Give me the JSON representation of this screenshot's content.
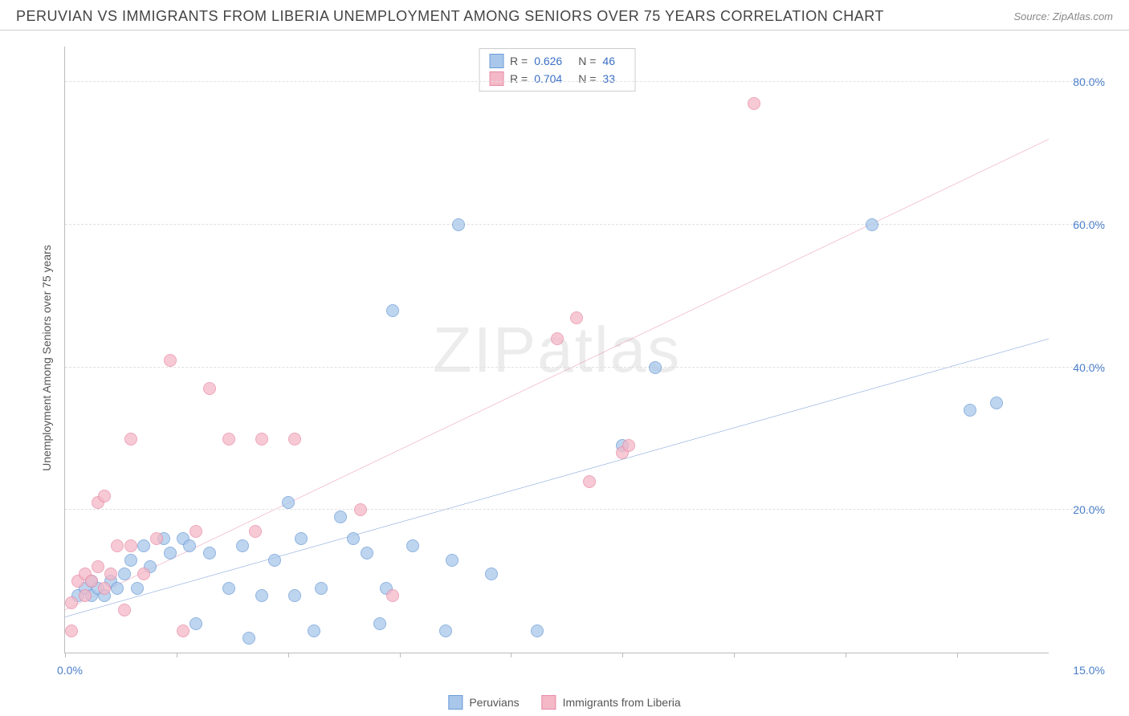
{
  "header": {
    "title": "PERUVIAN VS IMMIGRANTS FROM LIBERIA UNEMPLOYMENT AMONG SENIORS OVER 75 YEARS CORRELATION CHART",
    "source": "Source: ZipAtlas.com"
  },
  "chart": {
    "type": "scatter",
    "y_axis_label": "Unemployment Among Seniors over 75 years",
    "xlim": [
      0,
      15
    ],
    "ylim": [
      0,
      85
    ],
    "x_tick_label_left": "0.0%",
    "x_tick_label_right": "15.0%",
    "x_tick_positions": [
      0,
      1.7,
      3.4,
      5.1,
      6.8,
      8.5,
      10.2,
      11.9,
      13.6
    ],
    "y_ticks": [
      20,
      40,
      60,
      80
    ],
    "y_tick_labels": [
      "20.0%",
      "40.0%",
      "60.0%",
      "80.0%"
    ],
    "grid_color": "#e0e0e0",
    "axis_color": "#bbbbbb",
    "tick_label_color": "#4a7ec9",
    "background_color": "#ffffff",
    "watermark": "ZIPatlas",
    "series": [
      {
        "name": "Peruvians",
        "fill": "#a9c7ea",
        "stroke": "#6b9bd8",
        "trend_color": "#2f64c0",
        "trend": {
          "x1": 0,
          "y1": 5,
          "x2": 15,
          "y2": 44
        },
        "R": "0.626",
        "N": "46",
        "points": [
          [
            0.2,
            8
          ],
          [
            0.3,
            9
          ],
          [
            0.4,
            8
          ],
          [
            0.4,
            10
          ],
          [
            0.5,
            9
          ],
          [
            0.6,
            8
          ],
          [
            0.7,
            10
          ],
          [
            0.8,
            9
          ],
          [
            1.0,
            13
          ],
          [
            1.1,
            9
          ],
          [
            1.2,
            15
          ],
          [
            1.3,
            12
          ],
          [
            1.5,
            16
          ],
          [
            1.6,
            14
          ],
          [
            1.8,
            16
          ],
          [
            1.9,
            15
          ],
          [
            2.0,
            4
          ],
          [
            2.2,
            14
          ],
          [
            2.5,
            9
          ],
          [
            2.7,
            15
          ],
          [
            2.8,
            2
          ],
          [
            3.0,
            8
          ],
          [
            3.2,
            13
          ],
          [
            3.4,
            21
          ],
          [
            3.5,
            8
          ],
          [
            3.6,
            16
          ],
          [
            3.8,
            3
          ],
          [
            3.9,
            9
          ],
          [
            4.2,
            19
          ],
          [
            4.4,
            16
          ],
          [
            4.6,
            14
          ],
          [
            4.8,
            4
          ],
          [
            4.9,
            9
          ],
          [
            5.0,
            48
          ],
          [
            5.3,
            15
          ],
          [
            5.8,
            3
          ],
          [
            5.9,
            13
          ],
          [
            6.0,
            60
          ],
          [
            6.5,
            11
          ],
          [
            7.2,
            3
          ],
          [
            8.5,
            29
          ],
          [
            9.0,
            40
          ],
          [
            12.3,
            60
          ],
          [
            13.8,
            34
          ],
          [
            14.2,
            35
          ],
          [
            0.9,
            11
          ]
        ]
      },
      {
        "name": "Immigrants from Liberia",
        "fill": "#f4b8c7",
        "stroke": "#e88aa6",
        "trend_color": "#e0557d",
        "trend": {
          "x1": 0,
          "y1": 6,
          "x2": 15,
          "y2": 72
        },
        "R": "0.704",
        "N": "33",
        "points": [
          [
            0.1,
            7
          ],
          [
            0.1,
            3
          ],
          [
            0.2,
            10
          ],
          [
            0.3,
            8
          ],
          [
            0.3,
            11
          ],
          [
            0.4,
            10
          ],
          [
            0.5,
            12
          ],
          [
            0.5,
            21
          ],
          [
            0.6,
            9
          ],
          [
            0.6,
            22
          ],
          [
            0.7,
            11
          ],
          [
            0.8,
            15
          ],
          [
            0.9,
            6
          ],
          [
            1.0,
            15
          ],
          [
            1.0,
            30
          ],
          [
            1.2,
            11
          ],
          [
            1.4,
            16
          ],
          [
            1.6,
            41
          ],
          [
            1.8,
            3
          ],
          [
            2.0,
            17
          ],
          [
            2.2,
            37
          ],
          [
            2.5,
            30
          ],
          [
            2.9,
            17
          ],
          [
            3.0,
            30
          ],
          [
            3.5,
            30
          ],
          [
            4.5,
            20
          ],
          [
            5.0,
            8
          ],
          [
            7.5,
            44
          ],
          [
            7.8,
            47
          ],
          [
            8.0,
            24
          ],
          [
            8.5,
            28
          ],
          [
            8.6,
            29
          ],
          [
            10.5,
            77
          ]
        ]
      }
    ]
  },
  "bottom_legend": {
    "items": [
      "Peruvians",
      "Immigrants from Liberia"
    ]
  }
}
